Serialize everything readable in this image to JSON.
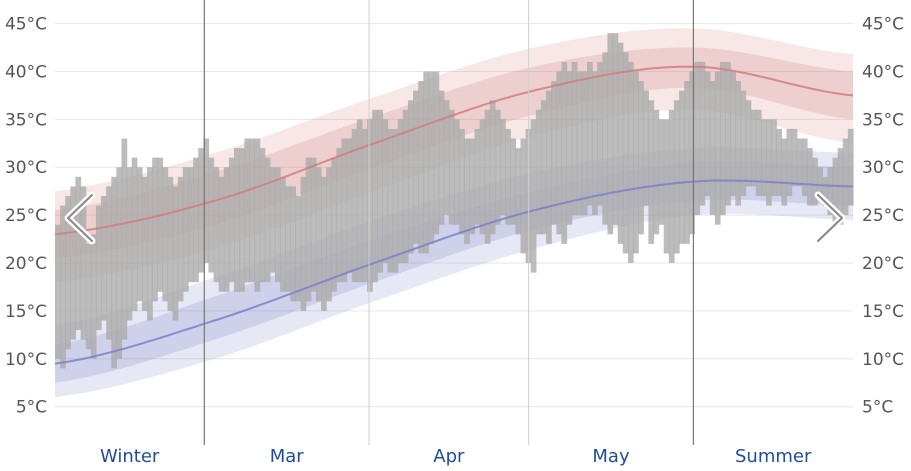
{
  "chart_data": {
    "type": "bar",
    "title": "",
    "xlabel": "",
    "ylabel": "",
    "ylim": [
      1,
      46
    ],
    "y_ticks": [
      5,
      10,
      15,
      20,
      25,
      30,
      35,
      40,
      45
    ],
    "y_tick_unit": "°C",
    "grid": true,
    "x_range": [
      0,
      155
    ],
    "segments": [
      {
        "label": "Winter",
        "start": 0,
        "end": 29,
        "boundary_style": "dark"
      },
      {
        "label": "Mar",
        "start": 29,
        "end": 61,
        "boundary_style": "light"
      },
      {
        "label": "Apr",
        "start": 61,
        "end": 92,
        "boundary_style": "light"
      },
      {
        "label": "May",
        "start": 92,
        "end": 124,
        "boundary_style": "dark"
      },
      {
        "label": "Summer",
        "start": 124,
        "end": 155,
        "boundary_style": null
      }
    ],
    "daily_ranges": {
      "name": "",
      "color": "#a9a9a9",
      "low": [
        10,
        9,
        11,
        12,
        13,
        12,
        11,
        10,
        13,
        14,
        12,
        9,
        10,
        12,
        14,
        15,
        16,
        15,
        14,
        16,
        17,
        16,
        15,
        14,
        16,
        17,
        18,
        18,
        19,
        20,
        19,
        18,
        17,
        17,
        18,
        17,
        17,
        18,
        18,
        17,
        18,
        18,
        19,
        18,
        17,
        17,
        16,
        16,
        15,
        16,
        17,
        16,
        15,
        16,
        17,
        18,
        18,
        19,
        18,
        18,
        18,
        17,
        18,
        19,
        20,
        19,
        19,
        20,
        20,
        21,
        22,
        21,
        21,
        22,
        23,
        24,
        25,
        24,
        24,
        23,
        22,
        23,
        24,
        23,
        22,
        23,
        24,
        25,
        24,
        24,
        23,
        21,
        20,
        19,
        23,
        23,
        22,
        24,
        23,
        22,
        24,
        25,
        25,
        25,
        26,
        25,
        26,
        24,
        23,
        24,
        22,
        21,
        20,
        21,
        23,
        26,
        22,
        23,
        24,
        21,
        20,
        21,
        22,
        22,
        23,
        25,
        26,
        27,
        25,
        24,
        25,
        26,
        27,
        26,
        27,
        28,
        28,
        27,
        27,
        26,
        27,
        27,
        26,
        27,
        28,
        28,
        27,
        26,
        26,
        27,
        26,
        25,
        24,
        24,
        25,
        26
      ],
      "high": [
        24,
        26,
        27,
        28,
        29,
        28,
        22,
        23,
        26,
        27,
        28,
        29,
        30,
        33,
        30,
        31,
        30,
        29,
        30,
        31,
        31,
        30,
        29,
        28,
        29,
        30,
        30,
        31,
        32,
        33,
        31,
        30,
        29,
        30,
        31,
        32,
        32,
        33,
        33,
        33,
        32,
        31,
        30,
        30,
        29,
        28,
        28,
        27,
        29,
        31,
        31,
        30,
        29,
        30,
        31,
        32,
        33,
        33,
        34,
        35,
        34,
        35,
        36,
        36,
        35,
        34,
        34,
        35,
        36,
        37,
        38,
        39,
        40,
        40,
        40,
        38,
        37,
        36,
        35,
        34,
        33,
        33,
        34,
        35,
        36,
        37,
        36,
        35,
        34,
        33,
        32,
        33,
        34,
        35,
        36,
        37,
        38,
        39,
        40,
        41,
        40,
        41,
        40,
        40,
        41,
        40,
        41,
        42,
        44,
        44,
        43,
        42,
        41,
        40,
        39,
        38,
        37,
        36,
        35,
        35,
        36,
        37,
        38,
        39,
        40,
        41,
        41,
        40,
        39,
        40,
        41,
        41,
        40,
        39,
        38,
        37,
        36,
        36,
        35,
        35,
        35,
        34,
        33,
        34,
        34,
        33,
        33,
        32,
        31,
        30,
        29,
        30,
        31,
        32,
        33,
        34
      ]
    },
    "series": [
      {
        "name": "",
        "type": "line",
        "color": "#d17c7c",
        "x": [
          0,
          31,
          62,
          93,
          124,
          155
        ],
        "mean": [
          23.0,
          26.5,
          32.5,
          38.0,
          40.5,
          37.5
        ],
        "inner": [
          [
            20.5,
            25.5
          ],
          [
            24.0,
            29.5
          ],
          [
            30.0,
            35.3
          ],
          [
            35.5,
            40.5
          ],
          [
            38.3,
            42.5
          ],
          [
            35.0,
            40.0
          ]
        ],
        "outer": [
          [
            18.0,
            27.5
          ],
          [
            21.5,
            31.5
          ],
          [
            27.5,
            37.3
          ],
          [
            33.3,
            42.5
          ],
          [
            36.0,
            44.5
          ],
          [
            32.5,
            41.8
          ]
        ]
      },
      {
        "name": "",
        "type": "line",
        "color": "#7b80c8",
        "x": [
          0,
          31,
          62,
          93,
          124,
          155
        ],
        "mean": [
          9.5,
          14.0,
          20.0,
          25.5,
          28.5,
          28.0
        ],
        "inner": [
          [
            7.5,
            11.5
          ],
          [
            12.0,
            16.5
          ],
          [
            18.0,
            22.5
          ],
          [
            23.5,
            27.5
          ],
          [
            26.5,
            30.5
          ],
          [
            26.0,
            30.0
          ]
        ],
        "outer": [
          [
            6.0,
            13.5
          ],
          [
            10.0,
            18.5
          ],
          [
            16.0,
            24.5
          ],
          [
            21.5,
            29.5
          ],
          [
            25.0,
            32.0
          ],
          [
            24.5,
            31.5
          ]
        ]
      }
    ]
  },
  "ui": {
    "prev_icon": "chevron-left-icon",
    "next_icon": "chevron-right-icon"
  }
}
